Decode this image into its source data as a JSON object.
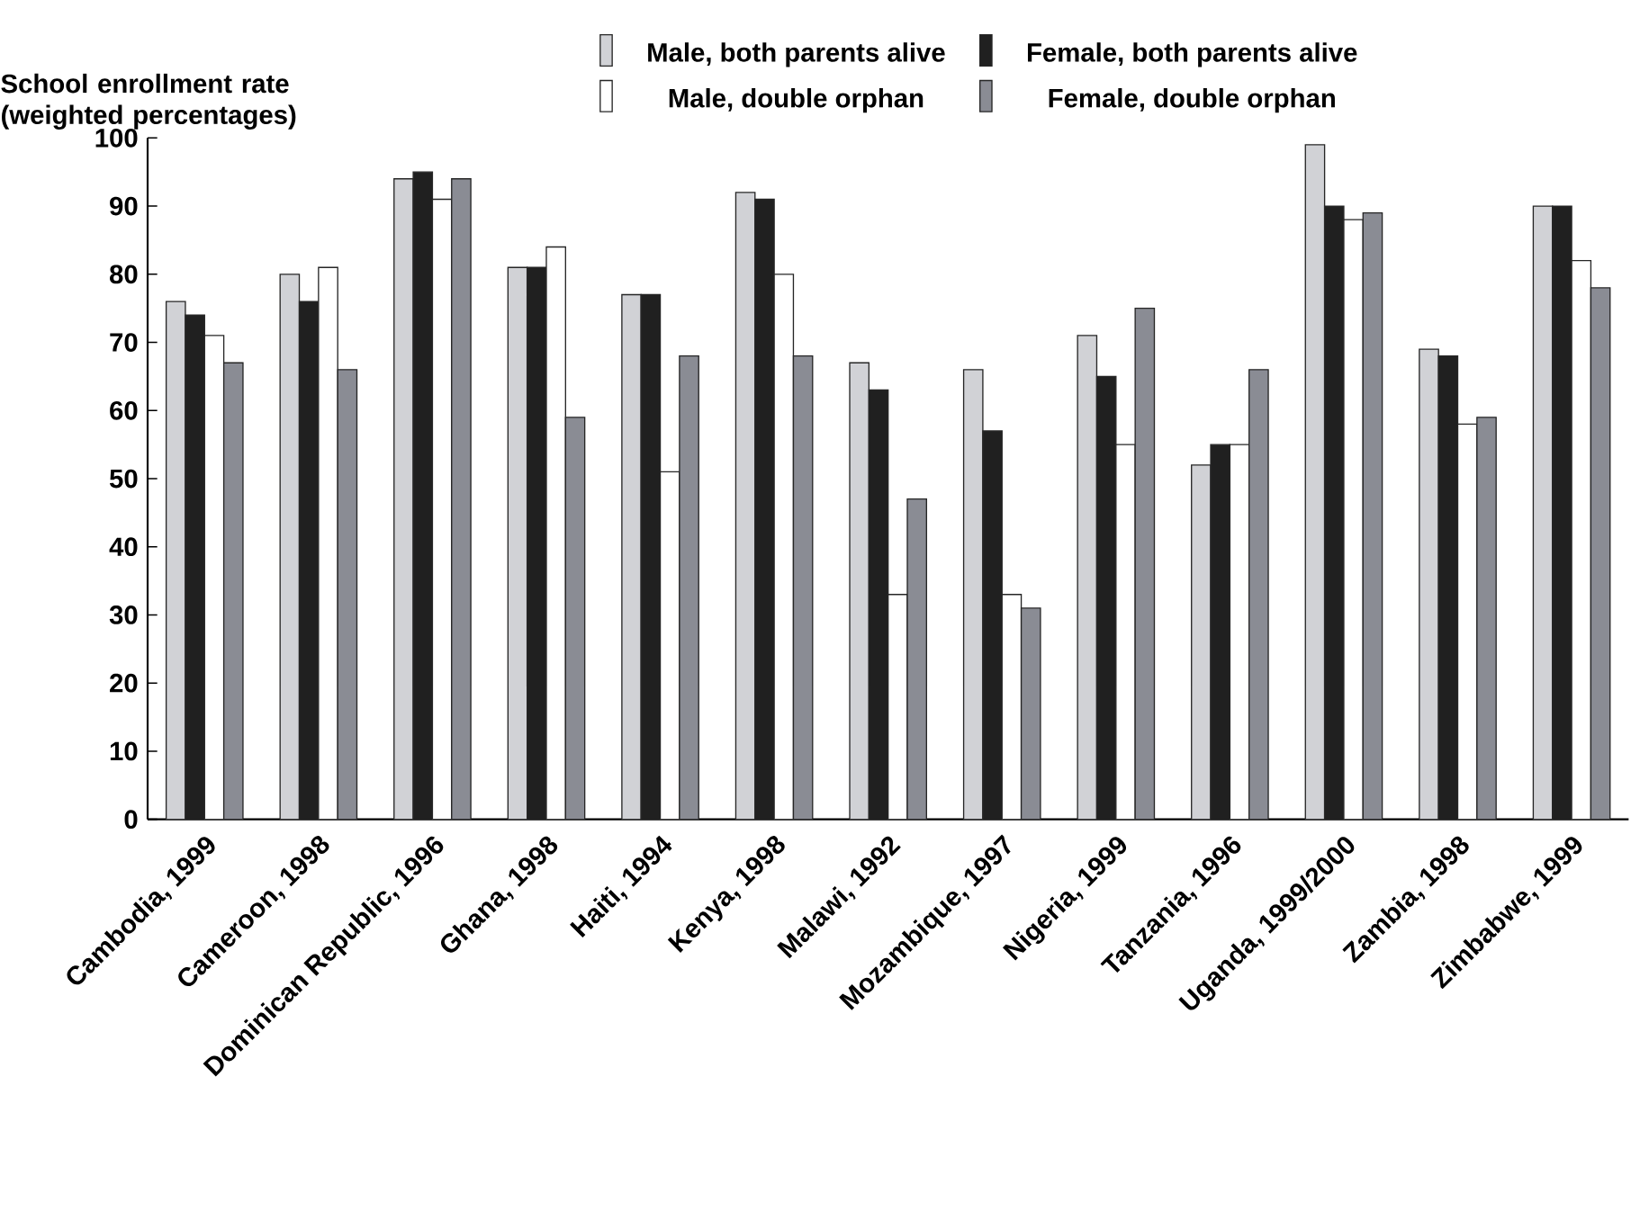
{
  "chart_data": {
    "type": "bar",
    "ylabel": "School enrollment rate (weighted percentages)",
    "categories": [
      "Cambodia, 1999",
      "Cameroon, 1998",
      "Dominican Republic, 1996",
      "Ghana, 1998",
      "Haiti, 1994",
      "Kenya, 1998",
      "Malawi, 1992",
      "Mozambique, 1997",
      "Nigeria, 1999",
      "Tanzania, 1996",
      "Uganda, 1999/2000",
      "Zambia, 1998",
      "Zimbabwe, 1999"
    ],
    "series": [
      {
        "name": "Male, both parents alive",
        "color": "#d1d2d6",
        "values": [
          76,
          80,
          94,
          81,
          77,
          92,
          67,
          66,
          71,
          52,
          99,
          69,
          90
        ]
      },
      {
        "name": "Female, both parents alive",
        "color": "#202020",
        "values": [
          74,
          76,
          95,
          81,
          77,
          91,
          63,
          57,
          65,
          55,
          90,
          68,
          90
        ]
      },
      {
        "name": "Male, double orphan",
        "color": "#ffffff",
        "values": [
          71,
          81,
          91,
          84,
          51,
          80,
          33,
          33,
          55,
          55,
          88,
          58,
          82
        ]
      },
      {
        "name": "Female, double orphan",
        "color": "#8a8c94",
        "values": [
          67,
          66,
          94,
          59,
          68,
          68,
          47,
          31,
          75,
          66,
          89,
          59,
          78
        ]
      }
    ],
    "ylim": [
      0,
      100
    ],
    "yticks": [
      0,
      10,
      20,
      30,
      40,
      50,
      60,
      70,
      80,
      90,
      100
    ],
    "grid": false,
    "legend": "top"
  }
}
